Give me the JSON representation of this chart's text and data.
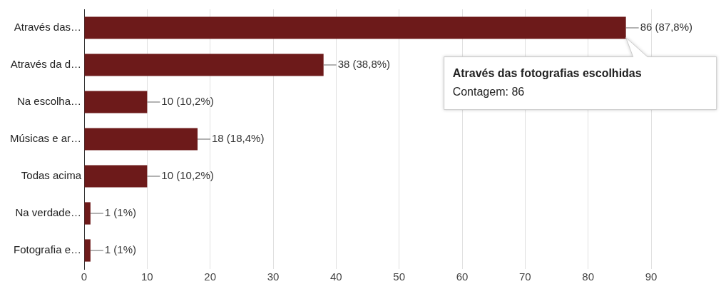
{
  "chart_data": {
    "type": "bar",
    "orientation": "horizontal",
    "categories": [
      "Através das…",
      "Através da d…",
      "Na escolha…",
      "Músicas e ar…",
      "Todas acima",
      "Na verdade…",
      "Fotografia e…"
    ],
    "values": [
      86,
      38,
      10,
      18,
      10,
      1,
      1
    ],
    "value_labels": [
      "86 (87,8%)",
      "38 (38,8%)",
      "10 (10,2%)",
      "18 (18,4%)",
      "10 (10,2%)",
      "1 (1%)",
      "1 (1%)"
    ],
    "color": "#6d1a1a",
    "xlim": [
      0,
      90
    ],
    "xticks": [
      0,
      10,
      20,
      30,
      40,
      50,
      60,
      70,
      80,
      90
    ],
    "grid": "x",
    "legend": false,
    "annotations": [
      {
        "text": "Através das fotografias escolhidas\nContagem: 86",
        "x": 86,
        "y": "Através das…"
      }
    ]
  }
}
